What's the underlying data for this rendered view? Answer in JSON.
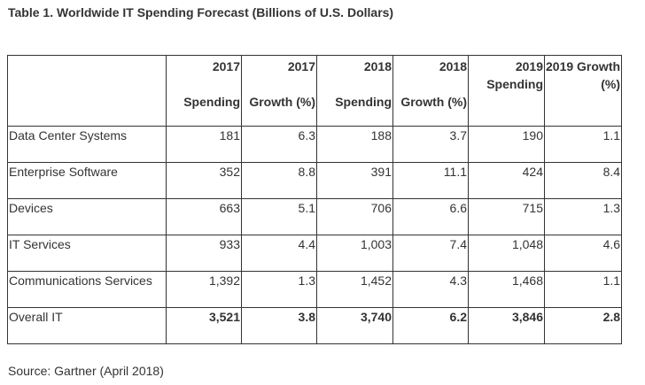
{
  "title": "Table 1. Worldwide IT Spending Forecast (Billions of U.S. Dollars)",
  "source": "Source: Gartner (April 2018)",
  "table": {
    "headers": [
      {
        "year": "",
        "metric": ""
      },
      {
        "year": "2017",
        "metric": "Spending"
      },
      {
        "year": "2017",
        "metric": "Growth (%)"
      },
      {
        "year": "2018",
        "metric": "Spending"
      },
      {
        "year": "2018",
        "metric": "Growth (%)"
      },
      {
        "year": "2019",
        "metric": "Spending"
      },
      {
        "year": "2019 Growth",
        "metric": "(%)"
      }
    ],
    "rows": [
      {
        "label": "Data Center Systems",
        "values": [
          "181",
          "6.3",
          "188",
          "3.7",
          "190",
          "1.1"
        ]
      },
      {
        "label": "Enterprise Software",
        "values": [
          "352",
          "8.8",
          "391",
          "11.1",
          "424",
          "8.4"
        ]
      },
      {
        "label": "Devices",
        "values": [
          "663",
          "5.1",
          "706",
          "6.6",
          "715",
          "1.3"
        ]
      },
      {
        "label": "IT Services",
        "values": [
          "933",
          "4.4",
          "1,003",
          "7.4",
          "1,048",
          "4.6"
        ]
      },
      {
        "label": "Communications Services",
        "values": [
          "1,392",
          "1.3",
          "1,452",
          "4.3",
          "1,468",
          "1.1"
        ]
      },
      {
        "label": "Overall IT",
        "values": [
          "3,521",
          "3.8",
          "3,740",
          "6.2",
          "3,846",
          "2.8"
        ]
      }
    ]
  }
}
